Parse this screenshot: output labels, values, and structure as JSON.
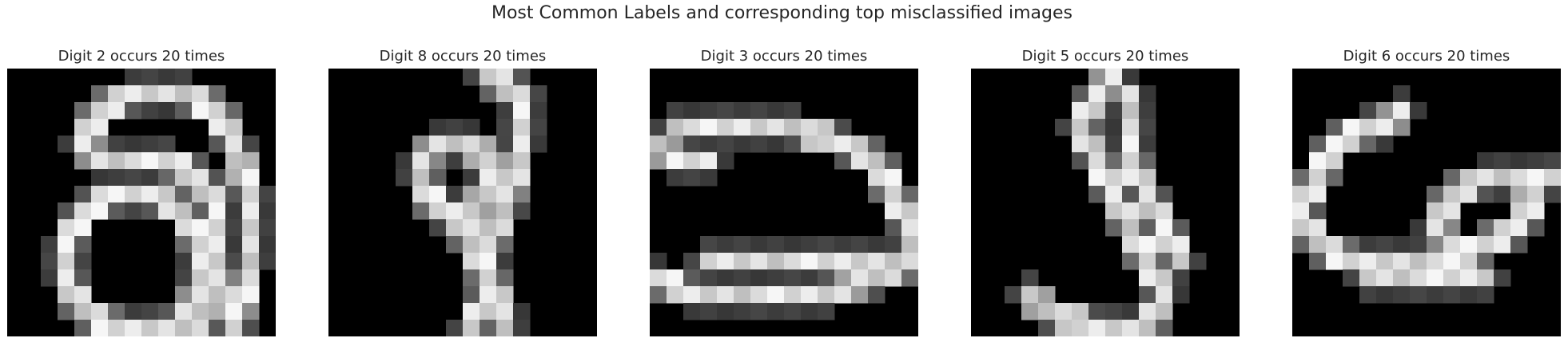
{
  "figure": {
    "title": "Most Common Labels and corresponding top misclassified images"
  },
  "panels": [
    {
      "title": "Digit 2 occurs 20 times",
      "grid_size": 16,
      "strokes": [
        [
          [
            7,
            1
          ],
          [
            10,
            1
          ],
          [
            12,
            2
          ],
          [
            13,
            4
          ],
          [
            14,
            7
          ],
          [
            14,
            11
          ],
          [
            13,
            15
          ]
        ],
        [
          [
            7,
            1
          ],
          [
            5,
            2
          ],
          [
            4,
            4
          ],
          [
            5,
            5
          ],
          [
            7,
            5
          ],
          [
            9,
            5
          ],
          [
            11,
            6
          ],
          [
            12,
            8
          ],
          [
            12,
            12
          ],
          [
            11,
            15
          ]
        ],
        [
          [
            10,
            8
          ],
          [
            8,
            7
          ],
          [
            6,
            7
          ],
          [
            4,
            8
          ],
          [
            3,
            10
          ],
          [
            3,
            12
          ],
          [
            4,
            14
          ],
          [
            6,
            15
          ],
          [
            9,
            15
          ],
          [
            11,
            14
          ]
        ],
        [
          [
            10,
            8
          ],
          [
            11,
            10
          ],
          [
            11,
            13
          ],
          [
            10,
            14
          ]
        ]
      ]
    },
    {
      "title": "Digit 8 occurs 20 times",
      "grid_size": 16,
      "strokes": [
        [
          [
            9,
            0
          ],
          [
            11,
            1
          ],
          [
            11,
            4
          ],
          [
            10,
            8
          ],
          [
            9,
            10
          ],
          [
            9,
            13
          ],
          [
            8,
            15
          ]
        ],
        [
          [
            6,
            4
          ],
          [
            8,
            4
          ],
          [
            9,
            5
          ],
          [
            9,
            7
          ],
          [
            8,
            8
          ],
          [
            6,
            8
          ],
          [
            5,
            6
          ],
          [
            5,
            5
          ],
          [
            6,
            4
          ]
        ],
        [
          [
            7,
            8
          ],
          [
            8,
            10
          ],
          [
            9,
            12
          ],
          [
            10,
            14
          ],
          [
            10,
            15
          ]
        ]
      ]
    },
    {
      "title": "Digit 3 occurs 20 times",
      "grid_size": 16,
      "strokes": [
        [
          [
            1,
            3
          ],
          [
            4,
            3
          ],
          [
            8,
            3
          ],
          [
            11,
            4
          ],
          [
            13,
            5
          ],
          [
            14,
            7
          ],
          [
            15,
            9
          ],
          [
            15,
            11
          ],
          [
            13,
            12
          ],
          [
            10,
            13
          ],
          [
            6,
            13
          ],
          [
            2,
            13
          ],
          [
            0,
            12
          ]
        ],
        [
          [
            0,
            4
          ],
          [
            1,
            5
          ],
          [
            3,
            5
          ]
        ],
        [
          [
            3,
            11
          ],
          [
            5,
            11
          ],
          [
            8,
            11
          ],
          [
            11,
            11
          ],
          [
            13,
            11
          ]
        ]
      ]
    },
    {
      "title": "Digit 5 occurs 20 times",
      "grid_size": 16,
      "strokes": [
        [
          [
            8,
            0
          ],
          [
            7,
            1
          ],
          [
            6,
            3
          ],
          [
            7,
            5
          ],
          [
            8,
            7
          ],
          [
            9,
            9
          ],
          [
            10,
            11
          ],
          [
            11,
            13
          ],
          [
            10,
            15
          ],
          [
            7,
            15
          ],
          [
            4,
            14
          ],
          [
            3,
            13
          ]
        ],
        [
          [
            9,
            1
          ],
          [
            9,
            3
          ],
          [
            9,
            5
          ],
          [
            10,
            7
          ],
          [
            11,
            9
          ],
          [
            12,
            11
          ]
        ]
      ]
    },
    {
      "title": "Digit 6 occurs 20 times",
      "grid_size": 16,
      "strokes": [
        [
          [
            6,
            2
          ],
          [
            5,
            3
          ],
          [
            4,
            3
          ],
          [
            2,
            4
          ],
          [
            1,
            6
          ],
          [
            0,
            8
          ],
          [
            1,
            10
          ],
          [
            3,
            11
          ],
          [
            6,
            11
          ],
          [
            9,
            11
          ],
          [
            11,
            10
          ],
          [
            13,
            9
          ],
          [
            14,
            7
          ],
          [
            13,
            6
          ],
          [
            11,
            6
          ],
          [
            9,
            7
          ],
          [
            8,
            9
          ],
          [
            9,
            10
          ]
        ],
        [
          [
            13,
            6
          ],
          [
            15,
            6
          ]
        ],
        [
          [
            4,
            12
          ],
          [
            8,
            12
          ],
          [
            11,
            12
          ]
        ]
      ]
    }
  ]
}
